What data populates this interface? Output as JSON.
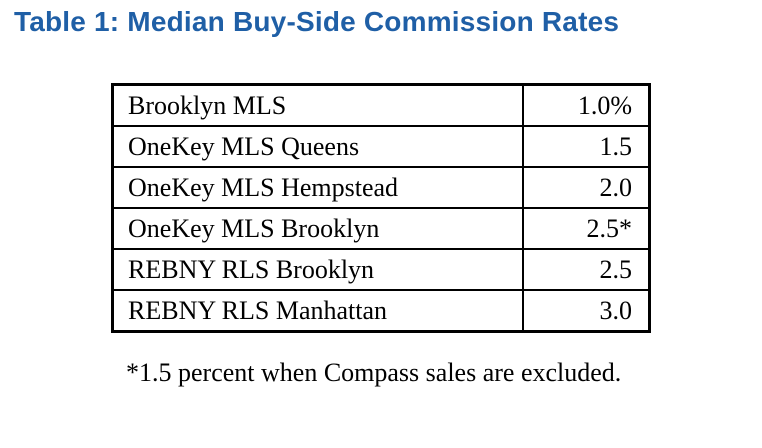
{
  "title": "Table 1:  Median Buy-Side Commission Rates",
  "rows": [
    {
      "label": "Brooklyn MLS",
      "value": "1.0%"
    },
    {
      "label": "OneKey MLS Queens",
      "value": "1.5"
    },
    {
      "label": "OneKey MLS Hempstead",
      "value": "2.0"
    },
    {
      "label": "OneKey MLS Brooklyn",
      "value": "2.5*"
    },
    {
      "label": "REBNY RLS Brooklyn",
      "value": "2.5"
    },
    {
      "label": "REBNY RLS Manhattan",
      "value": "3.0"
    }
  ],
  "footnote": "*1.5 percent when Compass sales are excluded.",
  "colors": {
    "title": "#1f5fa6",
    "text": "#000000",
    "border": "#000000"
  }
}
